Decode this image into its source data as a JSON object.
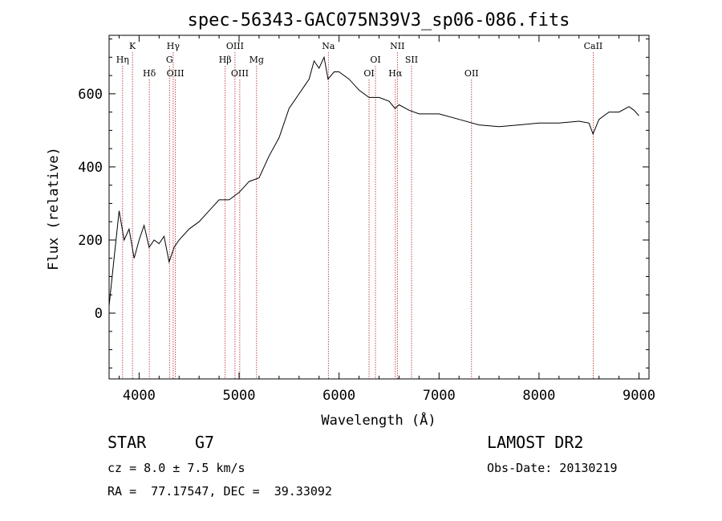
{
  "chart_data": {
    "type": "line",
    "title": "spec-56343-GAC075N39V3_sp06-086.fits",
    "xlabel": "Wavelength (Å)",
    "ylabel": "Flux (relative)",
    "xlim": [
      3700,
      9100
    ],
    "ylim": [
      -180,
      760
    ],
    "xticks": [
      4000,
      5000,
      6000,
      7000,
      8000,
      9000
    ],
    "yticks": [
      0,
      200,
      400,
      600
    ],
    "grid": false,
    "series": [
      {
        "color": "#000000",
        "x": [
          3700,
          3750,
          3800,
          3850,
          3900,
          3950,
          4000,
          4050,
          4100,
          4150,
          4200,
          4250,
          4300,
          4350,
          4400,
          4500,
          4600,
          4700,
          4800,
          4900,
          5000,
          5100,
          5200,
          5300,
          5400,
          5500,
          5600,
          5700,
          5750,
          5800,
          5850,
          5890,
          5950,
          6000,
          6100,
          6200,
          6300,
          6400,
          6500,
          6560,
          6600,
          6700,
          6800,
          7000,
          7200,
          7400,
          7600,
          7800,
          8000,
          8200,
          8400,
          8500,
          8540,
          8600,
          8700,
          8800,
          8900,
          8950,
          9000
        ],
        "y": [
          20,
          150,
          280,
          200,
          230,
          150,
          200,
          240,
          180,
          200,
          190,
          210,
          140,
          180,
          200,
          230,
          250,
          280,
          310,
          310,
          330,
          360,
          370,
          430,
          480,
          560,
          600,
          640,
          690,
          670,
          700,
          640,
          660,
          660,
          640,
          610,
          590,
          590,
          580,
          560,
          570,
          555,
          545,
          545,
          530,
          515,
          510,
          515,
          520,
          520,
          525,
          520,
          490,
          530,
          550,
          550,
          565,
          555,
          540
        ]
      }
    ],
    "spectral_lines": [
      {
        "label": "Hη",
        "x": 3835,
        "row": 2
      },
      {
        "label": "K",
        "x": 3934,
        "row": 1
      },
      {
        "label": "Hδ",
        "x": 4102,
        "row": 3
      },
      {
        "label": "Hγ",
        "x": 4341,
        "row": 1
      },
      {
        "label": "G",
        "x": 4304,
        "row": 2
      },
      {
        "label": "OIII",
        "x": 4363,
        "row": 3
      },
      {
        "label": "OIII",
        "x": 4959,
        "row": 1
      },
      {
        "label": "Hβ",
        "x": 4861,
        "row": 2
      },
      {
        "label": "OIII",
        "x": 5007,
        "row": 3
      },
      {
        "label": "Mg",
        "x": 5175,
        "row": 2
      },
      {
        "label": "Na",
        "x": 5893,
        "row": 1
      },
      {
        "label": "OI",
        "x": 6364,
        "row": 2
      },
      {
        "label": "OI",
        "x": 6300,
        "row": 3
      },
      {
        "label": "NII",
        "x": 6583,
        "row": 1
      },
      {
        "label": "Hα",
        "x": 6563,
        "row": 3
      },
      {
        "label": "SII",
        "x": 6725,
        "row": 2
      },
      {
        "label": "OII",
        "x": 7325,
        "row": 3
      },
      {
        "label": "CaII",
        "x": 8542,
        "row": 1
      }
    ]
  },
  "info": {
    "class_label": "STAR",
    "subclass_label": "G7",
    "survey_label": "LAMOST DR2",
    "cz_text": "cz = 8.0 ± 7.5 km/s",
    "obs_date_text": "Obs-Date: 20130219",
    "radec_text": "RA =  77.17547, DEC =  39.33092"
  },
  "colors": {
    "line_marker": "#b22222",
    "spectrum": "#000000"
  }
}
